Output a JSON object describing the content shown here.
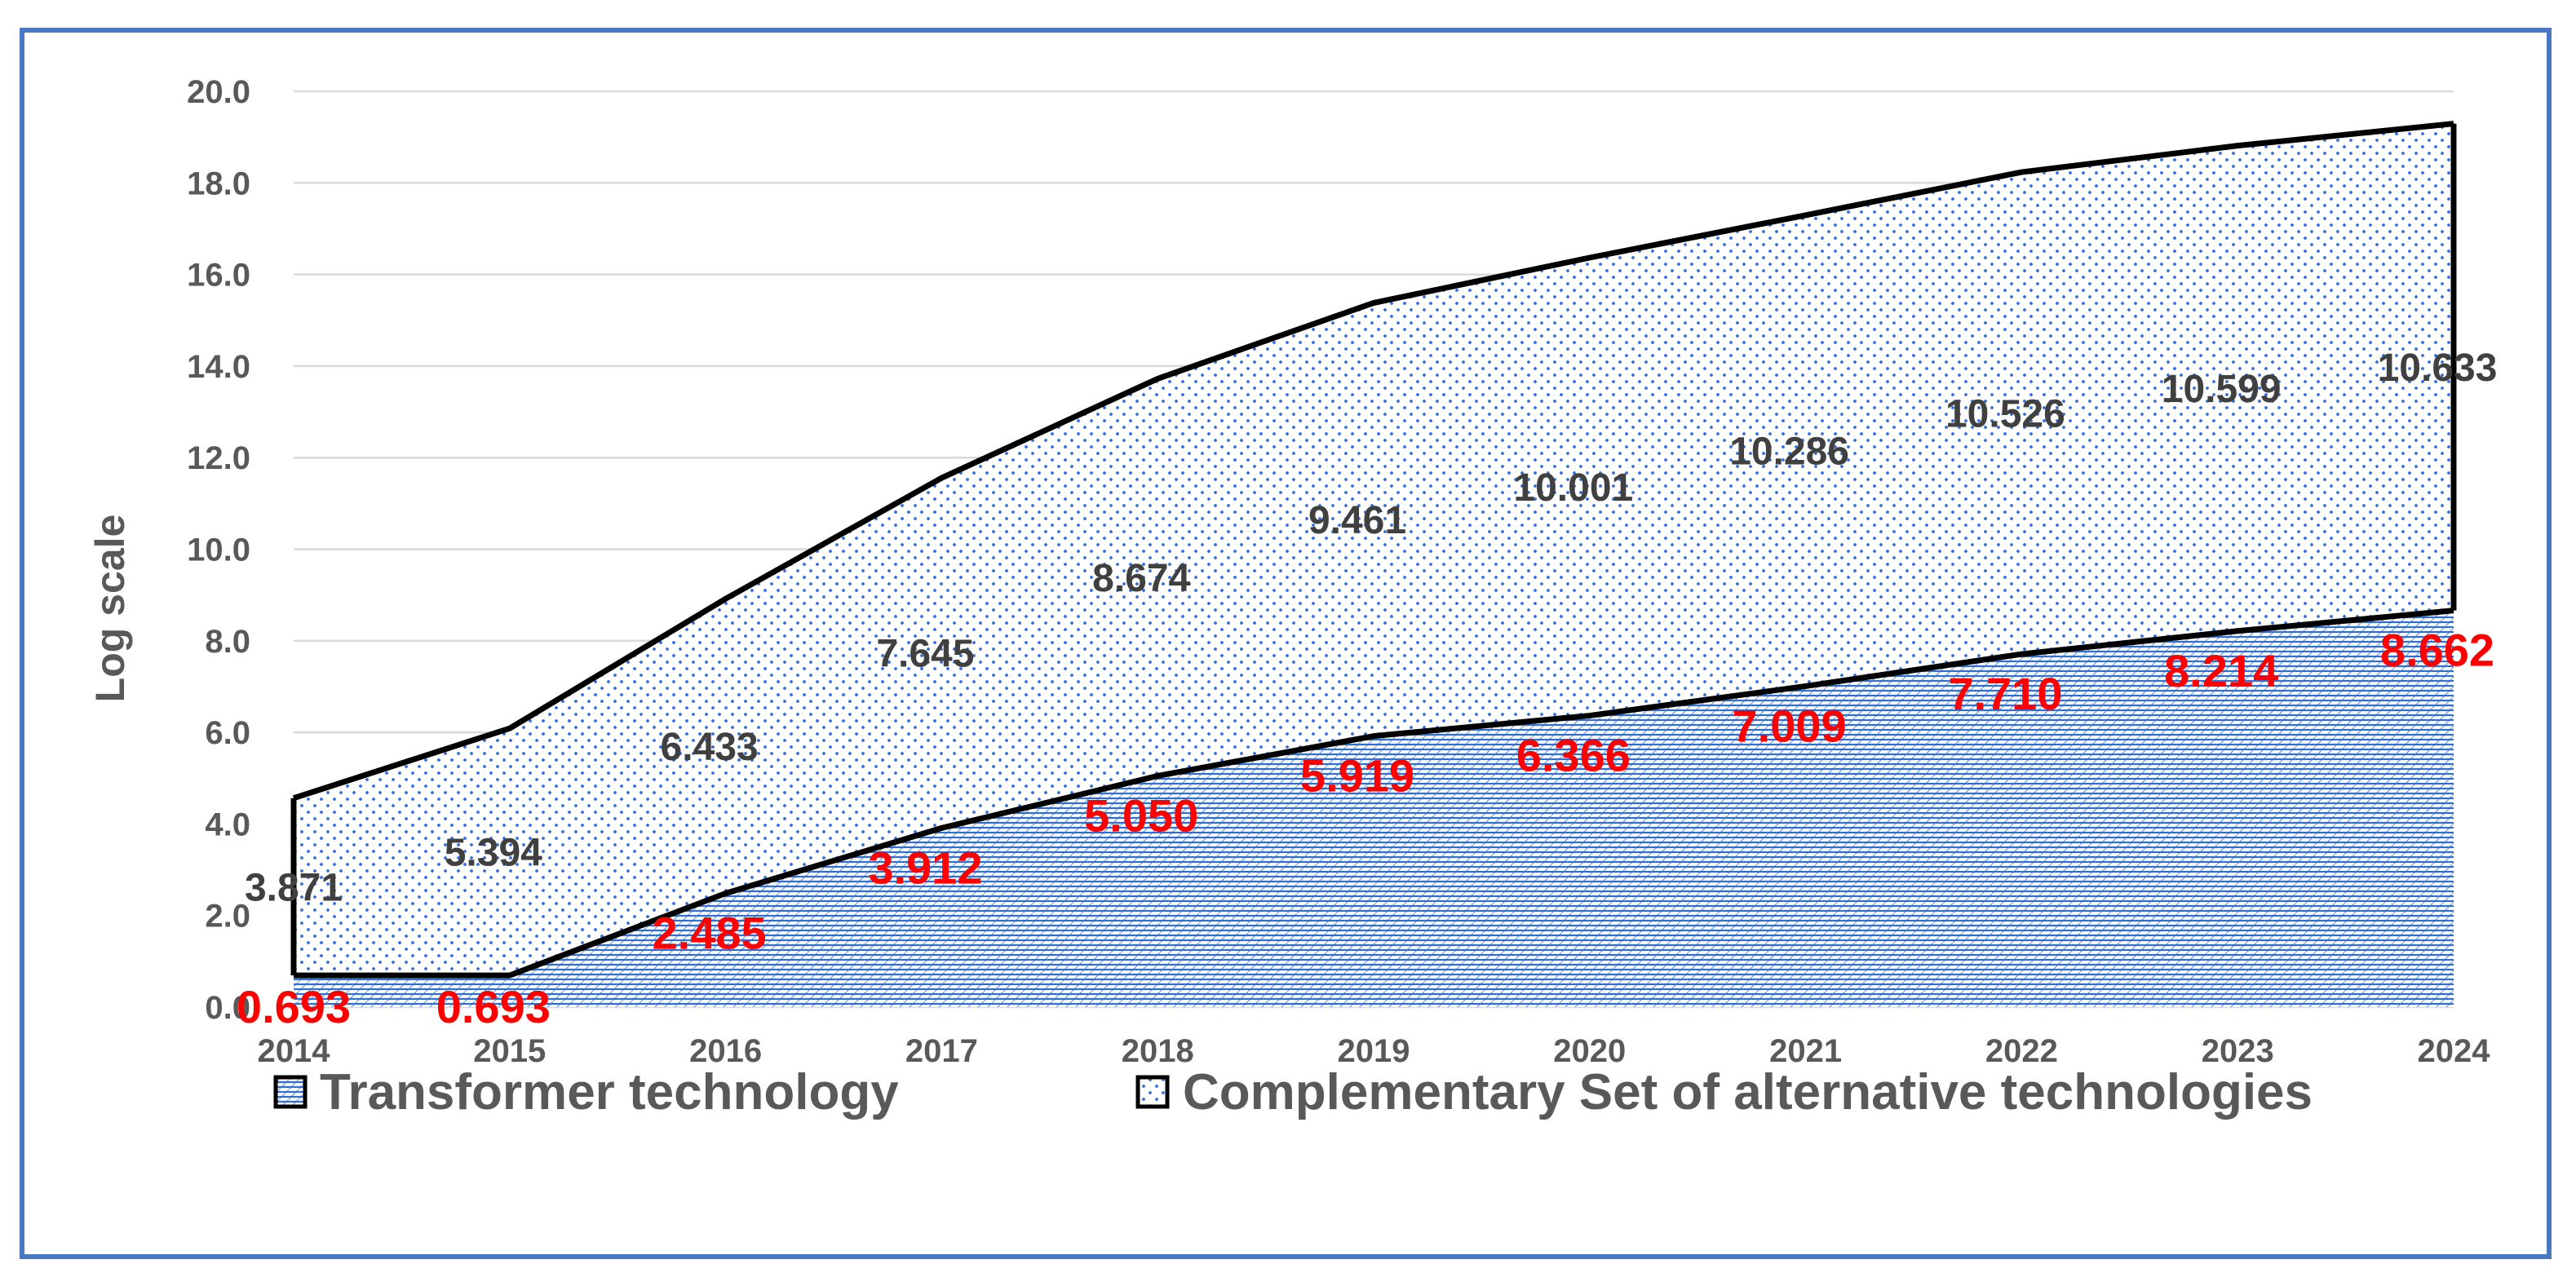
{
  "chart_data": {
    "type": "area",
    "title": "",
    "xlabel": "",
    "ylabel": "Log scale",
    "ylim": [
      0,
      20
    ],
    "ytick_step": 2,
    "grid": true,
    "x": [
      "2014",
      "2015",
      "2016",
      "2017",
      "2018",
      "2019",
      "2020",
      "2021",
      "2022",
      "2023",
      "2024"
    ],
    "series": [
      {
        "name": "Transformer technology",
        "pattern": "dotted",
        "values": [
          0.693,
          0.693,
          2.485,
          3.912,
          5.05,
          5.919,
          6.366,
          7.009,
          7.71,
          8.214,
          8.662
        ],
        "labels": [
          "0.693",
          "0.693",
          "2.485",
          "3.912",
          "5.050",
          "5.919",
          "6.366",
          "7.009",
          "7.710",
          "8.214",
          "8.662"
        ],
        "label_color": "#ff0000"
      },
      {
        "name": "Complementary Set of alternative technologies",
        "pattern": "hatched",
        "values": [
          3.871,
          5.394,
          6.433,
          7.645,
          8.674,
          9.461,
          10.001,
          10.286,
          10.526,
          10.599,
          10.633
        ],
        "labels": [
          "3.871",
          "5.394",
          "6.433",
          "7.645",
          "8.674",
          "9.461",
          "10.001",
          "10.286",
          "10.526",
          "10.599",
          "10.633"
        ],
        "label_color": "#404040"
      }
    ],
    "legend_position": "bottom"
  },
  "colors": {
    "frame": "#4a78c2",
    "pattern": "#2e6fd1",
    "outline": "#000000",
    "grid": "#d9d9d9",
    "axis_text": "#595959"
  }
}
